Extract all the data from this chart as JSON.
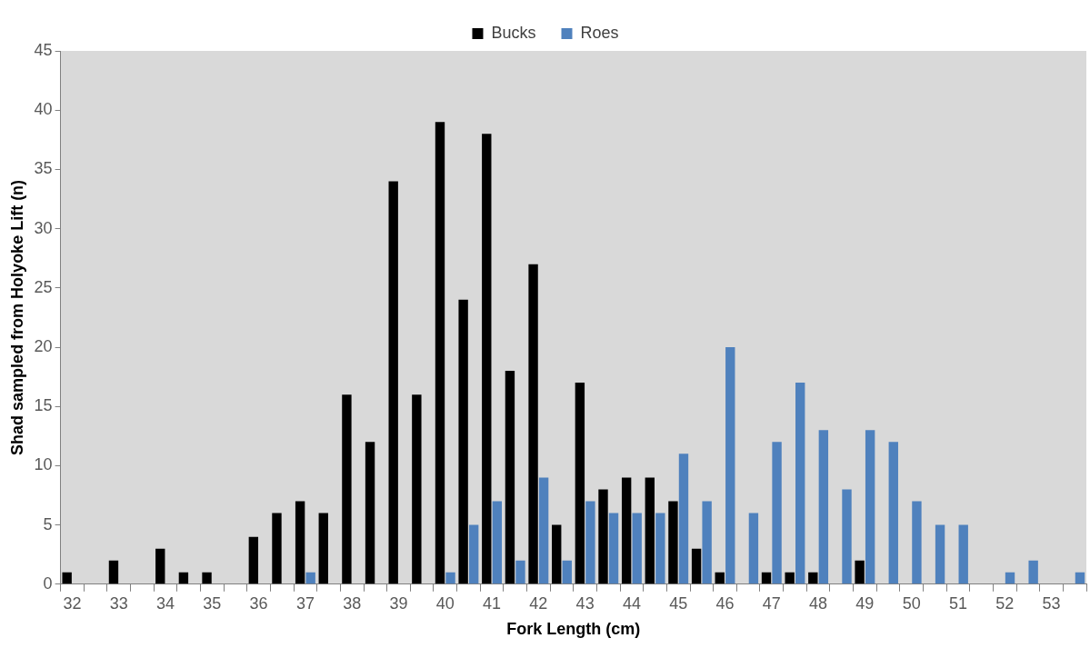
{
  "chart_data": {
    "type": "bar",
    "xlabel": "Fork Length (cm)",
    "ylabel": "Shad sampled from Holyoke Lift (n)",
    "categories": [
      "32",
      null,
      "33",
      null,
      "34",
      null,
      "35",
      null,
      "36",
      null,
      "37",
      null,
      "38",
      null,
      "39",
      null,
      "40",
      null,
      "41",
      null,
      "42",
      null,
      "43",
      null,
      "44",
      null,
      "45",
      null,
      "46",
      null,
      "47",
      null,
      "48",
      null,
      "49",
      null,
      "50",
      null,
      "51",
      null,
      "52",
      null,
      "53",
      null
    ],
    "series": [
      {
        "name": "Bucks",
        "color": "#000000",
        "values": [
          1,
          0,
          2,
          0,
          3,
          1,
          1,
          0,
          4,
          6,
          7,
          6,
          16,
          12,
          34,
          16,
          39,
          24,
          38,
          18,
          27,
          5,
          17,
          8,
          9,
          9,
          7,
          3,
          1,
          0,
          1,
          1,
          1,
          0,
          2,
          0,
          0,
          0,
          0,
          0,
          0,
          0,
          0,
          0
        ]
      },
      {
        "name": "Roes",
        "color": "#4f81bd",
        "values": [
          0,
          0,
          0,
          0,
          0,
          0,
          0,
          0,
          0,
          0,
          1,
          0,
          0,
          0,
          0,
          0,
          1,
          5,
          7,
          2,
          9,
          2,
          7,
          6,
          6,
          6,
          11,
          7,
          20,
          6,
          12,
          17,
          13,
          8,
          13,
          12,
          7,
          5,
          5,
          0,
          1,
          2,
          0,
          1
        ]
      }
    ],
    "ylim": [
      0,
      45
    ],
    "yticks": [
      0,
      5,
      10,
      15,
      20,
      25,
      30,
      35,
      40,
      45
    ],
    "grid": false,
    "legend": "top"
  }
}
